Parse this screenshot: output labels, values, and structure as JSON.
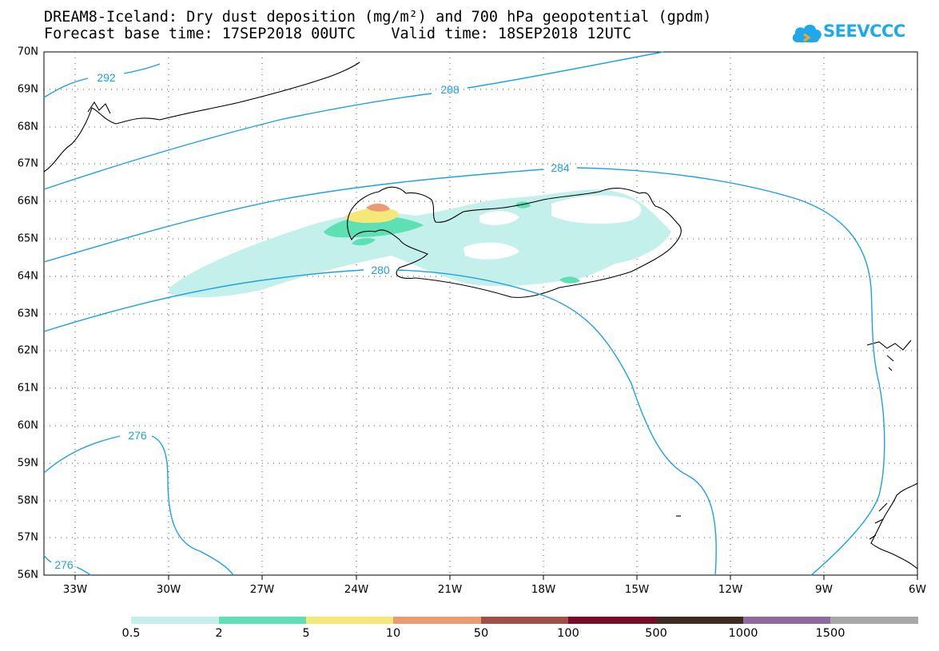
{
  "title": {
    "line1": "DREAM8-Iceland: Dry dust deposition (mg/m²) and 700 hPa geopotential (gpdm)",
    "line2": "Forecast base time: 17SEP2018 00UTC    Valid time: 18SEP2018 12UTC"
  },
  "logo": {
    "text": "SEEVCCC",
    "icon": "cloud-icon",
    "color": "#1fa9ec"
  },
  "map": {
    "projection": "lat-lon",
    "lon_range": [
      "34W",
      "6W"
    ],
    "lat_range": [
      "56N",
      "70N"
    ],
    "lat_labels": [
      "70N",
      "69N",
      "68N",
      "67N",
      "66N",
      "65N",
      "64N",
      "63N",
      "62N",
      "61N",
      "60N",
      "59N",
      "58N",
      "57N",
      "56N"
    ],
    "lon_labels": [
      "33W",
      "30W",
      "27W",
      "24W",
      "21W",
      "18W",
      "15W",
      "12W",
      "9W",
      "6W"
    ],
    "gridlines": "dotted",
    "contour_color": "#1ea0e6",
    "contour_labels": [
      "292",
      "288",
      "284",
      "280",
      "276",
      "276"
    ]
  },
  "colorbar": {
    "labels": [
      "0.5",
      "2",
      "5",
      "10",
      "50",
      "100",
      "500",
      "1000",
      "1500"
    ],
    "colors": [
      "#c3f0ea",
      "#5de0b4",
      "#f6e878",
      "#ec9a72",
      "#a34e43",
      "#7a0a25",
      "#3e2a1e",
      "#8e6a9e",
      "#a8a8a8"
    ]
  }
}
